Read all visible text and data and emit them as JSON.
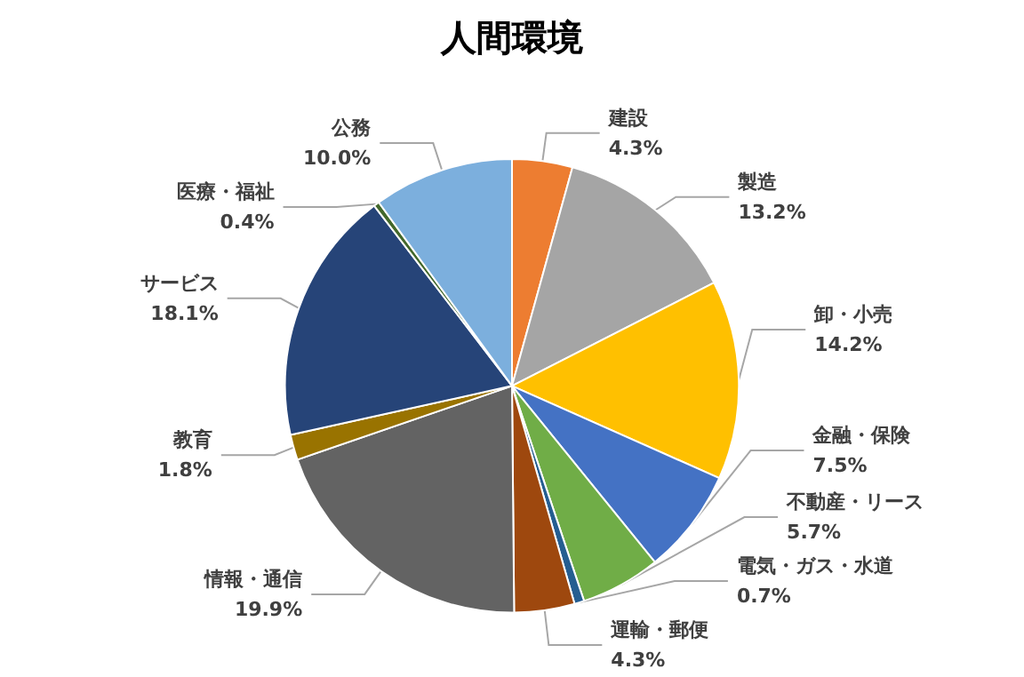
{
  "chart_data": {
    "type": "pie",
    "title": "人間環境",
    "categories": [
      "建設",
      "製造",
      "卸・小売",
      "金融・保険",
      "不動産・リース",
      "電気・ガス・水道",
      "運輸・郵便",
      "情報・通信",
      "教育",
      "サービス",
      "医療・福祉",
      "公務"
    ],
    "values": [
      4.3,
      13.2,
      14.2,
      7.5,
      5.7,
      0.7,
      4.3,
      19.9,
      1.8,
      18.1,
      0.4,
      10.0
    ],
    "value_labels": [
      "4.3%",
      "13.2%",
      "14.2%",
      "7.5%",
      "5.7%",
      "0.7%",
      "4.3%",
      "19.9%",
      "1.8%",
      "18.1%",
      "0.4%",
      "10.0%"
    ],
    "colors": [
      "#ed7d31",
      "#a5a5a5",
      "#ffc000",
      "#4472c4",
      "#70ad47",
      "#255e91",
      "#9e480e",
      "#636363",
      "#997300",
      "#264478",
      "#43682b",
      "#7cafdd"
    ],
    "legend": false
  }
}
